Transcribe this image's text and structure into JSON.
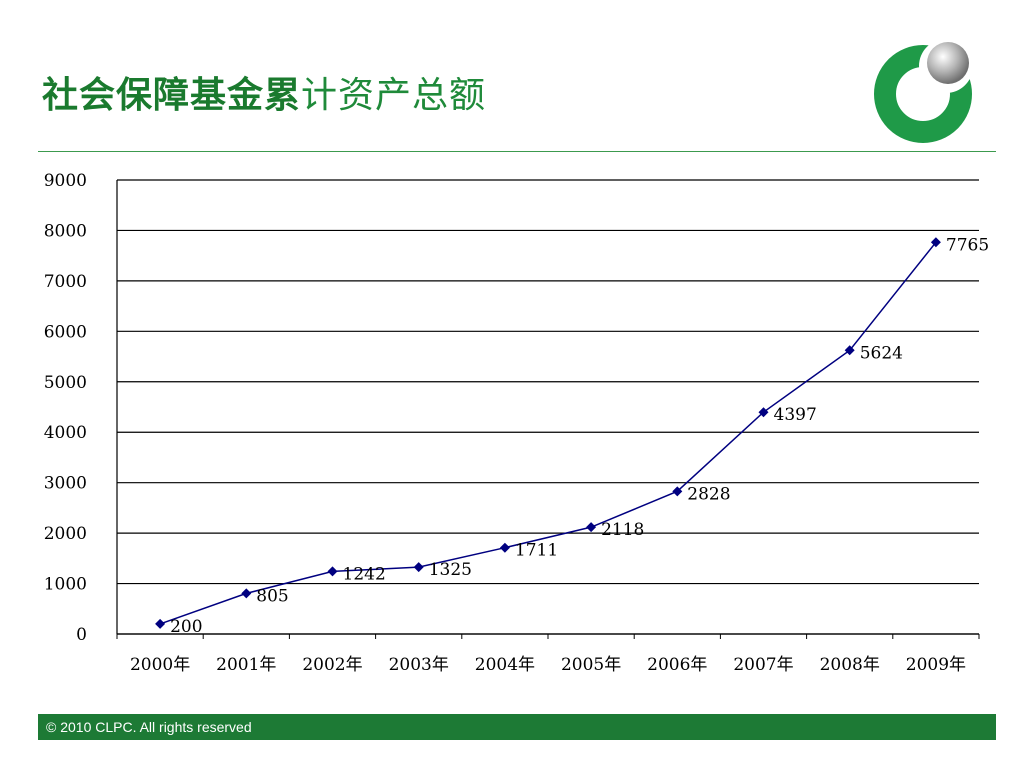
{
  "header": {
    "title_part1": "社会保障基金累",
    "title_part2": "计资产总额"
  },
  "logo": {
    "icon": "clpc-logo-icon",
    "colors": {
      "green": "#1f9a48",
      "gray": "#9a9a9a"
    }
  },
  "chart_data": {
    "type": "line",
    "title": "",
    "xlabel": "",
    "ylabel": "",
    "categories": [
      "2000年",
      "2001年",
      "2002年",
      "2003年",
      "2004年",
      "2005年",
      "2006年",
      "2007年",
      "2008年",
      "2009年"
    ],
    "values": [
      200,
      805,
      1242,
      1325,
      1711,
      2118,
      2828,
      4397,
      5624,
      7765
    ],
    "data_labels": [
      "200",
      "805",
      "1242",
      "1325",
      "1711",
      "2118",
      "2828",
      "4397",
      "5624",
      "7765"
    ],
    "ylim": [
      0,
      9000
    ],
    "yticks": [
      0,
      1000,
      2000,
      3000,
      4000,
      5000,
      6000,
      7000,
      8000,
      9000
    ],
    "ytick_labels": [
      "0",
      "1000",
      "2000",
      "3000",
      "4000",
      "5000",
      "6000",
      "7000",
      "8000",
      "9000"
    ],
    "grid": true,
    "legend": "none",
    "colors": {
      "series": "#000080",
      "grid": "#000000"
    }
  },
  "footer": {
    "text": "© 2010 CLPC. All rights reserved"
  }
}
